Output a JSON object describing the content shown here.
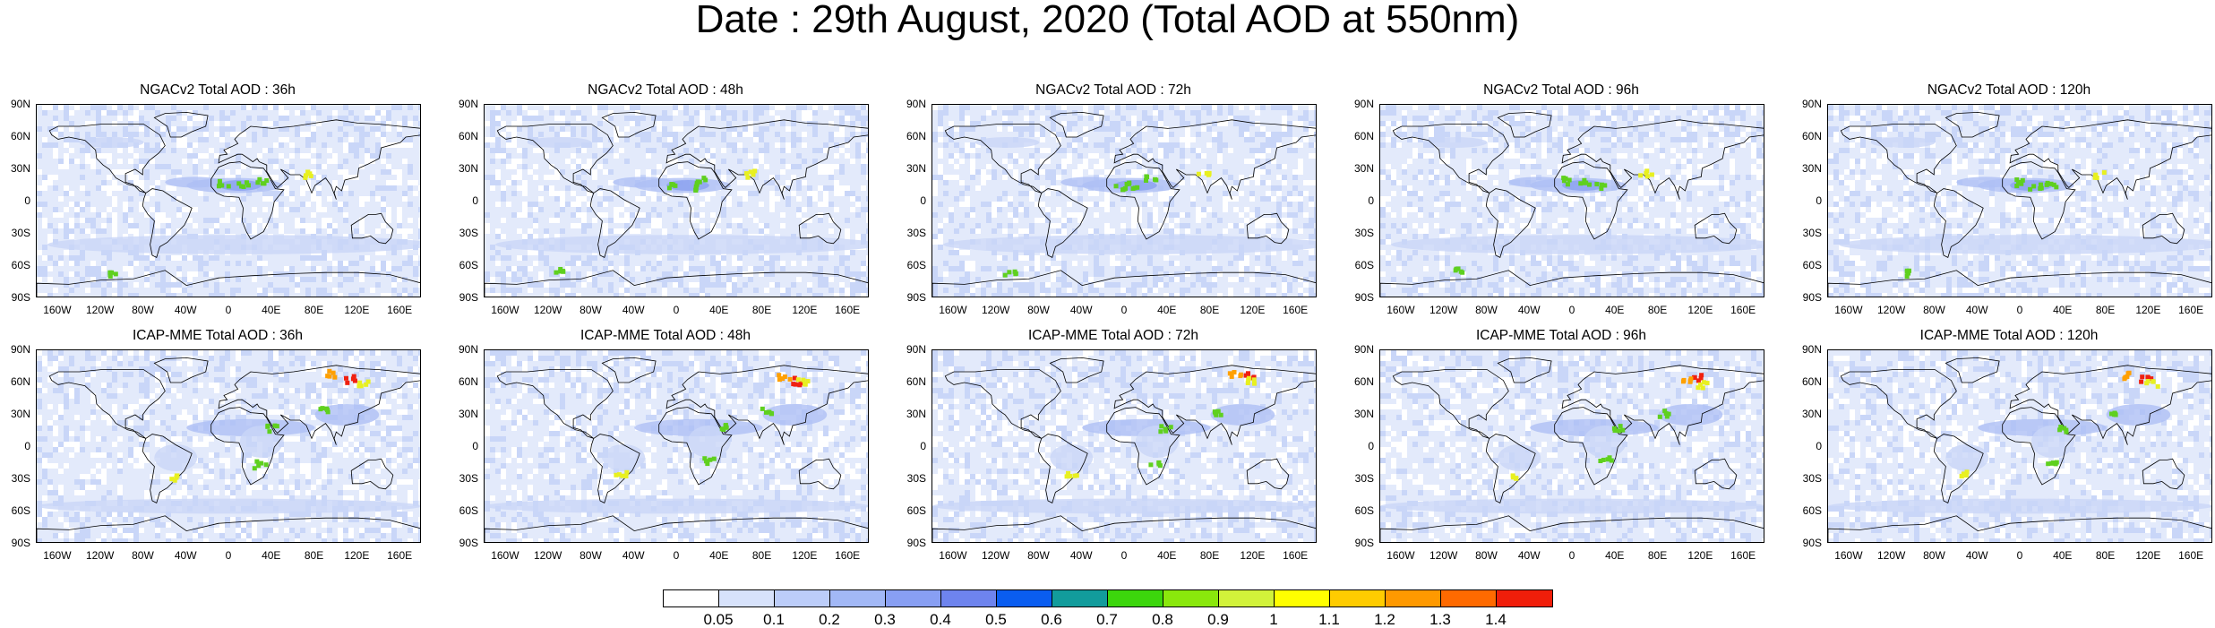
{
  "title": "Date : 29th August, 2020 (Total AOD at 550nm)",
  "panels": [
    {
      "title": "NGACv2 Total AOD : 36h",
      "model": "NGACv2",
      "forecast_hour": 36
    },
    {
      "title": "NGACv2 Total AOD : 48h",
      "model": "NGACv2",
      "forecast_hour": 48
    },
    {
      "title": "NGACv2 Total AOD : 72h",
      "model": "NGACv2",
      "forecast_hour": 72
    },
    {
      "title": "NGACv2 Total AOD : 96h",
      "model": "NGACv2",
      "forecast_hour": 96
    },
    {
      "title": "NGACv2 Total AOD : 120h",
      "model": "NGACv2",
      "forecast_hour": 120
    },
    {
      "title": "ICAP-MME Total AOD : 36h",
      "model": "ICAP-MME",
      "forecast_hour": 36
    },
    {
      "title": "ICAP-MME Total AOD : 48h",
      "model": "ICAP-MME",
      "forecast_hour": 48
    },
    {
      "title": "ICAP-MME Total AOD : 72h",
      "model": "ICAP-MME",
      "forecast_hour": 72
    },
    {
      "title": "ICAP-MME Total AOD : 96h",
      "model": "ICAP-MME",
      "forecast_hour": 96
    },
    {
      "title": "ICAP-MME Total AOD : 120h",
      "model": "ICAP-MME",
      "forecast_hour": 120
    }
  ],
  "lat_labels": [
    "90N",
    "60N",
    "30N",
    "0",
    "30S",
    "60S",
    "90S"
  ],
  "lon_labels": [
    "160W",
    "120W",
    "80W",
    "40W",
    "0",
    "40E",
    "80E",
    "120E",
    "160E"
  ],
  "colorbar": {
    "labels": [
      "0.05",
      "0.1",
      "0.2",
      "0.3",
      "0.4",
      "0.5",
      "0.6",
      "0.7",
      "0.8",
      "0.9",
      "1",
      "1.1",
      "1.2",
      "1.3",
      "1.4"
    ],
    "colors": [
      "#ffffff",
      "#d7e2fb",
      "#bccdf9",
      "#a2b8f6",
      "#889ff3",
      "#6e84ee",
      "#0a5df0",
      "#129c9c",
      "#3cd60c",
      "#8ae80c",
      "#d2f23a",
      "#ffff00",
      "#ffcc00",
      "#ff9900",
      "#ff6a00",
      "#f01e0a"
    ]
  },
  "map_palette": {
    "land": "#ffffff",
    "coast": "#000000",
    "ocean_low": "#e3eafb",
    "ocean_mid": "#c9d6f8",
    "ocean_high": "#aebff5",
    "dust": "#8aa0f0",
    "plume_green": "#5fd01f",
    "plume_yellow": "#e8f020",
    "plume_orange": "#ffa000",
    "plume_red": "#f02010"
  }
}
